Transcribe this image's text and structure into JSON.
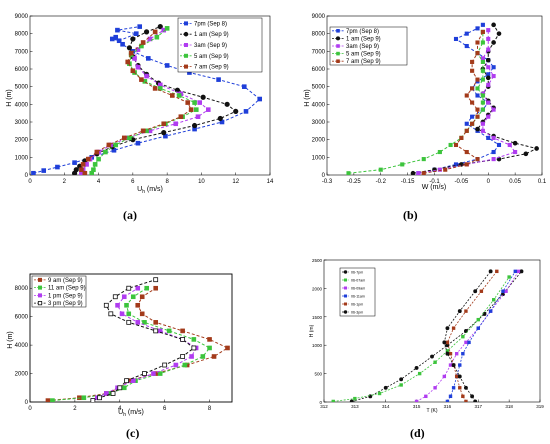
{
  "panel_labels": [
    "(a)",
    "(b)",
    "(c)",
    "(d)"
  ],
  "colors": {
    "7pm": "#1f3fd9",
    "1am": "#111111",
    "3am": "#b03cf0",
    "5am": "#3cc43c",
    "7am": "#a33a1a",
    "9am": "#a33a1a",
    "11am": "#3cc43c",
    "1pm": "#b03cf0",
    "3pm": "#111111"
  },
  "chart_data": [
    {
      "type": "line",
      "panel": "(a)",
      "xlabel": "U_h (m/s)",
      "ylabel": "H (m)",
      "xlim": [
        0,
        14
      ],
      "ylim": [
        0,
        9000
      ],
      "xticks": [
        "0",
        "2",
        "4",
        "6",
        "8",
        "10",
        "12",
        "14"
      ],
      "yticks": [
        "0",
        "1000",
        "2000",
        "3000",
        "4000",
        "5000",
        "6000",
        "7000",
        "8000",
        "9000"
      ],
      "legend_position": "top-right",
      "series": [
        {
          "name": "7pm (Sep 8)",
          "key": "7pm",
          "x": [
            0.2,
            0.8,
            1.6,
            2.6,
            3.6,
            4.9,
            6.3,
            7.9,
            9.6,
            11.2,
            12.6,
            13.4,
            12.5,
            11.0,
            9.3,
            8.0,
            6.9,
            6.0,
            5.4,
            5.0,
            4.8,
            5.2,
            6.2,
            5.1,
            6.4
          ],
          "y": [
            100,
            250,
            450,
            700,
            1000,
            1400,
            1800,
            2200,
            2600,
            3000,
            3600,
            4300,
            5000,
            5400,
            5800,
            6200,
            6600,
            7000,
            7400,
            7800,
            7700,
            7600,
            8000,
            8200,
            8400
          ]
        },
        {
          "name": "1 am (Sep 9)",
          "key": "1am",
          "x": [
            2.6,
            2.7,
            2.9,
            3.2,
            3.9,
            4.8,
            6.0,
            7.8,
            9.6,
            11.1,
            12.0,
            11.5,
            10.1,
            8.6,
            7.5,
            6.8,
            6.3,
            6.0,
            5.8,
            6.0,
            6.8,
            7.6
          ],
          "y": [
            100,
            300,
            500,
            800,
            1200,
            1600,
            2000,
            2400,
            2800,
            3200,
            3600,
            4000,
            4400,
            4800,
            5200,
            5700,
            6200,
            6700,
            7200,
            7700,
            8100,
            8400
          ]
        },
        {
          "name": "3am (Sep 9)",
          "key": "3am",
          "x": [
            3.0,
            3.1,
            3.3,
            3.5,
            4.0,
            4.7,
            5.7,
            7.0,
            8.5,
            9.8,
            10.4,
            9.9,
            8.8,
            7.6,
            6.8,
            6.3,
            6.1,
            6.3,
            7.0,
            7.8
          ],
          "y": [
            100,
            300,
            600,
            900,
            1300,
            1700,
            2100,
            2500,
            2900,
            3300,
            3700,
            4100,
            4600,
            5100,
            5600,
            6100,
            6600,
            7100,
            7700,
            8200
          ]
        },
        {
          "name": "5 am (Sep 9)",
          "key": "5am",
          "x": [
            3.6,
            3.7,
            3.8,
            4.0,
            4.4,
            5.0,
            5.8,
            6.8,
            7.9,
            8.9,
            9.7,
            9.6,
            8.7,
            7.6,
            6.7,
            6.1,
            5.8,
            5.9,
            6.5,
            7.4,
            8.0
          ],
          "y": [
            100,
            300,
            600,
            900,
            1300,
            1700,
            2100,
            2500,
            2900,
            3300,
            3700,
            4100,
            4500,
            4900,
            5300,
            5800,
            6300,
            6800,
            7300,
            7800,
            8300
          ]
        },
        {
          "name": "7 am (Sep 9)",
          "key": "7am",
          "x": [
            3.2,
            3.0,
            3.1,
            3.4,
            3.9,
            4.6,
            5.5,
            6.6,
            7.8,
            8.8,
            9.4,
            9.2,
            8.3,
            7.3,
            6.5,
            6.0,
            5.7,
            5.9,
            6.6,
            7.3
          ],
          "y": [
            100,
            300,
            600,
            900,
            1300,
            1700,
            2100,
            2500,
            2900,
            3300,
            3700,
            4100,
            4500,
            4900,
            5400,
            5900,
            6400,
            6900,
            7500,
            8100
          ]
        }
      ]
    },
    {
      "type": "line",
      "panel": "(b)",
      "xlabel": "W (m/s)",
      "ylabel": "H (m)",
      "xlim": [
        -0.3,
        0.1
      ],
      "ylim": [
        0,
        9000
      ],
      "xticks": [
        "-0.3",
        "-0.25",
        "-0.2",
        "-0.15",
        "-0.1",
        "-0.05",
        "0",
        "0.05",
        "0.1"
      ],
      "yticks": [
        "0",
        "1000",
        "2000",
        "3000",
        "4000",
        "5000",
        "6000",
        "7000",
        "8000",
        "9000"
      ],
      "legend_position": "top-left",
      "series": [
        {
          "name": "7pm (Sep 8)",
          "key": "7pm",
          "x": [
            -0.13,
            -0.1,
            -0.06,
            -0.02,
            0.01,
            0.02,
            0.0,
            -0.02,
            -0.04,
            -0.03,
            -0.01,
            0.0,
            -0.02,
            -0.03,
            -0.02,
            0.0,
            0.01,
            0.0,
            -0.02,
            -0.04,
            -0.06,
            -0.04,
            -0.02,
            -0.01
          ],
          "y": [
            100,
            300,
            600,
            900,
            1300,
            1700,
            2100,
            2500,
            2900,
            3300,
            3700,
            4100,
            4500,
            4900,
            5300,
            5700,
            6100,
            6500,
            6900,
            7300,
            7700,
            8000,
            8300,
            8500
          ]
        },
        {
          "name": "1 am (Sep 9)",
          "key": "1am",
          "x": [
            -0.14,
            -0.1,
            -0.05,
            0.02,
            0.07,
            0.09,
            0.05,
            0.01,
            -0.02,
            -0.01,
            0.0,
            0.01,
            0.0,
            -0.01,
            0.0,
            0.0,
            -0.01,
            0.0,
            0.0,
            0.01,
            0.02,
            0.01
          ],
          "y": [
            100,
            300,
            600,
            900,
            1200,
            1500,
            1800,
            2200,
            2600,
            3000,
            3400,
            3800,
            4200,
            4600,
            5000,
            5500,
            6000,
            6500,
            7000,
            7500,
            8000,
            8500
          ]
        },
        {
          "name": "3am (Sep 9)",
          "key": "3am",
          "x": [
            -0.13,
            -0.09,
            -0.04,
            0.01,
            0.05,
            0.04,
            0.01,
            -0.01,
            -0.01,
            0.0,
            0.01,
            0.0,
            -0.01,
            0.0,
            0.01,
            0.0,
            -0.01,
            0.0,
            0.0,
            0.0
          ],
          "y": [
            100,
            300,
            600,
            900,
            1300,
            1700,
            2100,
            2500,
            2900,
            3300,
            3700,
            4100,
            4600,
            5100,
            5600,
            6100,
            6600,
            7100,
            7700,
            8200
          ]
        },
        {
          "name": "5 am (Sep 9)",
          "key": "5am",
          "x": [
            -0.26,
            -0.2,
            -0.16,
            -0.12,
            -0.09,
            -0.07,
            -0.05,
            -0.04,
            -0.03,
            -0.02,
            -0.01,
            -0.01,
            -0.01,
            -0.02,
            -0.01,
            -0.01,
            -0.01,
            -0.02,
            -0.01,
            -0.01
          ],
          "y": [
            100,
            300,
            600,
            900,
            1300,
            1700,
            2100,
            2500,
            2900,
            3300,
            3700,
            4100,
            4500,
            4900,
            5400,
            5900,
            6400,
            6900,
            7500,
            8100
          ]
        },
        {
          "name": "7 am (Sep 9)",
          "key": "7am",
          "x": [
            -0.12,
            -0.08,
            -0.04,
            -0.02,
            -0.04,
            -0.06,
            -0.05,
            -0.04,
            -0.03,
            -0.02,
            -0.02,
            -0.03,
            -0.04,
            -0.03,
            -0.02,
            -0.03,
            -0.03,
            -0.02,
            -0.02,
            -0.01
          ],
          "y": [
            100,
            300,
            600,
            900,
            1300,
            1700,
            2100,
            2500,
            2900,
            3300,
            3700,
            4100,
            4500,
            4900,
            5400,
            5900,
            6400,
            6900,
            7500,
            8100
          ]
        }
      ]
    },
    {
      "type": "line",
      "panel": "(c)",
      "xlabel": "U_h (m/s)",
      "ylabel": "H (m)",
      "xlim": [
        0,
        9
      ],
      "ylim": [
        0,
        9000
      ],
      "xticks": [
        "0",
        "2",
        "4",
        "6",
        "8"
      ],
      "yticks": [
        "0",
        "2000",
        "4000",
        "6000",
        "8000"
      ],
      "legend_position": "top-left",
      "series": [
        {
          "name": "9 am (Sep 9)",
          "key": "9am",
          "x": [
            0.8,
            2.2,
            3.4,
            4.0,
            4.4,
            5.6,
            7.0,
            8.2,
            8.8,
            8.0,
            6.8,
            5.6,
            5.0,
            4.8,
            5.0,
            5.6
          ],
          "y": [
            100,
            300,
            600,
            1000,
            1500,
            2000,
            2600,
            3200,
            3800,
            4400,
            5000,
            5600,
            6200,
            6800,
            7400,
            8000
          ]
        },
        {
          "name": "11 am (Sep 9)",
          "key": "11am",
          "x": [
            1.0,
            2.4,
            3.6,
            4.2,
            4.7,
            5.8,
            6.9,
            7.7,
            8.0,
            7.3,
            6.2,
            5.1,
            4.4,
            4.3,
            4.6,
            5.2
          ],
          "y": [
            100,
            300,
            600,
            1000,
            1500,
            2000,
            2600,
            3200,
            3800,
            4400,
            5000,
            5600,
            6200,
            6800,
            7400,
            8000
          ]
        },
        {
          "name": "1 pm (Sep 9)",
          "key": "1pm",
          "x": [
            2.8,
            3.0,
            3.4,
            3.9,
            4.6,
            5.5,
            6.5,
            7.2,
            7.4,
            6.8,
            5.8,
            4.8,
            4.1,
            3.9,
            4.2,
            4.8
          ],
          "y": [
            100,
            300,
            600,
            1000,
            1500,
            2000,
            2600,
            3200,
            3800,
            4400,
            5000,
            5600,
            6200,
            6800,
            7400,
            8000
          ]
        },
        {
          "name": "3 pm (Sep 9)",
          "key": "3pm",
          "x": [
            2.8,
            3.1,
            3.7,
            4.0,
            4.3,
            5.1,
            6.0,
            6.8,
            7.3,
            6.8,
            5.6,
            4.4,
            3.6,
            3.4,
            3.8,
            4.4,
            5.6
          ],
          "y": [
            100,
            300,
            600,
            1000,
            1500,
            2000,
            2600,
            3200,
            3800,
            4400,
            5000,
            5600,
            6200,
            6800,
            7400,
            8000,
            8600
          ]
        }
      ]
    },
    {
      "type": "line",
      "panel": "(d)",
      "xlabel": "T (K)",
      "ylabel": "H (m)",
      "xlim": [
        312,
        319
      ],
      "ylim": [
        0,
        2500
      ],
      "xticks": [
        "312",
        "313",
        "314",
        "315",
        "316",
        "317",
        "318",
        "319"
      ],
      "yticks": [
        "0",
        "500",
        "1000",
        "1500",
        "2000",
        "2500"
      ],
      "legend_position": "top-left",
      "series": [
        {
          "name": "06-7pm",
          "key": "3pm",
          "x": [
            312.9,
            313.5,
            314.0,
            314.5,
            315.0,
            315.5,
            316.0,
            316.6,
            317.2,
            317.8,
            318.4
          ],
          "y": [
            10,
            100,
            250,
            400,
            600,
            800,
            1000,
            1250,
            1550,
            1900,
            2300
          ]
        },
        {
          "name": "06-07am",
          "key": "5am",
          "x": [
            312.3,
            313.0,
            313.8,
            314.5,
            315.1,
            315.6,
            316.0,
            316.5,
            317.0,
            317.5,
            318.0
          ],
          "y": [
            10,
            60,
            150,
            300,
            500,
            700,
            900,
            1150,
            1450,
            1800,
            2200
          ]
        },
        {
          "name": "06-09am",
          "key": "1pm",
          "x": [
            315.0,
            315.3,
            315.6,
            315.9,
            316.1,
            316.3,
            316.6,
            317.0,
            317.4,
            317.9,
            318.3
          ],
          "y": [
            10,
            100,
            250,
            450,
            650,
            850,
            1050,
            1300,
            1600,
            1950,
            2300
          ]
        },
        {
          "name": "06-11am",
          "key": "7pm",
          "x": [
            316.0,
            316.1,
            316.2,
            316.3,
            316.4,
            316.5,
            316.7,
            317.0,
            317.4,
            317.8,
            318.2
          ],
          "y": [
            10,
            100,
            250,
            450,
            650,
            850,
            1050,
            1300,
            1600,
            1950,
            2300
          ]
        },
        {
          "name": "06-1pm",
          "key": "9am",
          "x": [
            316.6,
            316.5,
            316.4,
            316.3,
            316.2,
            316.1,
            316.0,
            316.2,
            316.6,
            317.1,
            317.6
          ],
          "y": [
            10,
            100,
            250,
            450,
            650,
            850,
            1050,
            1300,
            1600,
            1950,
            2300
          ]
        },
        {
          "name": "06-3pm",
          "key": "3pm",
          "x": [
            316.9,
            316.8,
            316.6,
            316.4,
            316.2,
            316.0,
            315.9,
            316.0,
            316.4,
            316.9,
            317.4
          ],
          "y": [
            10,
            100,
            250,
            450,
            650,
            850,
            1050,
            1300,
            1600,
            1950,
            2300
          ]
        }
      ]
    }
  ]
}
